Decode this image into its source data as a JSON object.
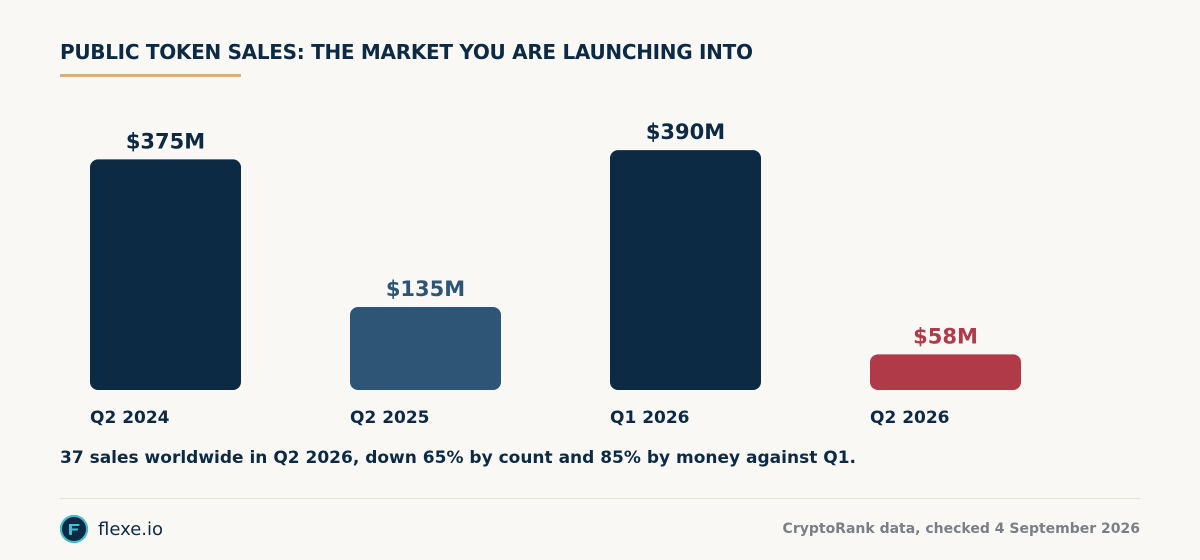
{
  "title": "PUBLIC TOKEN SALES: THE MARKET YOU ARE LAUNCHING INTO",
  "caption": "37 sales worldwide in Q2 2026, down 65% by count and 85% by money against Q1.",
  "brand": {
    "name": "flexe.io",
    "logo_icon": "flexe-logo-icon"
  },
  "source": "CryptoRank data, checked 4 September 2026",
  "colors": {
    "accent_rule": "#d4b07a",
    "dark_navy": "#0c2a44",
    "slate_blue": "#2e5476",
    "highlight_red": "#b03a48",
    "logo_teal": "#3fc0d4"
  },
  "chart_data": {
    "type": "bar",
    "title": "",
    "xlabel": "",
    "ylabel": "",
    "categories": [
      "Q2 2024",
      "Q2 2025",
      "Q1 2026",
      "Q2 2026"
    ],
    "values": [
      375,
      135,
      390,
      58
    ],
    "value_labels": [
      "$375M",
      "$135M",
      "$390M",
      "$58M"
    ],
    "unit": "$M",
    "bar_colors": [
      "#0c2a44",
      "#2e5476",
      "#0c2a44",
      "#b03a48"
    ],
    "ylim": [
      0,
      400
    ],
    "grid": false,
    "legend": "none"
  }
}
